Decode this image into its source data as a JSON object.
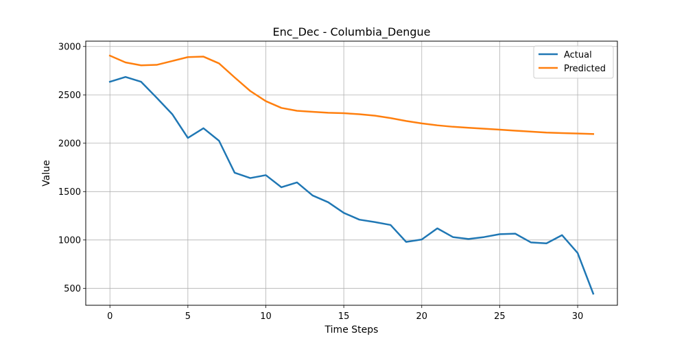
{
  "chart_data": {
    "type": "line",
    "title": "Enc_Dec - Columbia_Dengue",
    "xlabel": "Time Steps",
    "ylabel": "Value",
    "xlim": [
      -1.55,
      32.55
    ],
    "ylim": [
      325,
      3055
    ],
    "xticks": [
      0,
      5,
      10,
      15,
      20,
      25,
      30
    ],
    "yticks": [
      500,
      1000,
      1500,
      2000,
      2500,
      3000
    ],
    "grid": true,
    "legend_position": "top-right",
    "x": [
      0,
      1,
      2,
      3,
      4,
      5,
      6,
      7,
      8,
      9,
      10,
      11,
      12,
      13,
      14,
      15,
      16,
      17,
      18,
      19,
      20,
      21,
      22,
      23,
      24,
      25,
      26,
      27,
      28,
      29,
      30,
      31
    ],
    "series": [
      {
        "name": "Actual",
        "color": "#1f77b4",
        "values": [
          2635,
          2685,
          2635,
          2470,
          2300,
          2055,
          2155,
          2025,
          1695,
          1640,
          1670,
          1545,
          1595,
          1460,
          1390,
          1280,
          1210,
          1185,
          1155,
          980,
          1005,
          1120,
          1030,
          1010,
          1030,
          1060,
          1065,
          975,
          965,
          1050,
          865,
          445
        ]
      },
      {
        "name": "Predicted",
        "color": "#ff7f0e",
        "values": [
          2905,
          2835,
          2805,
          2810,
          2850,
          2890,
          2895,
          2825,
          2680,
          2540,
          2435,
          2365,
          2335,
          2325,
          2315,
          2310,
          2300,
          2285,
          2260,
          2230,
          2205,
          2185,
          2170,
          2160,
          2150,
          2140,
          2130,
          2120,
          2110,
          2105,
          2100,
          2095
        ]
      }
    ]
  }
}
